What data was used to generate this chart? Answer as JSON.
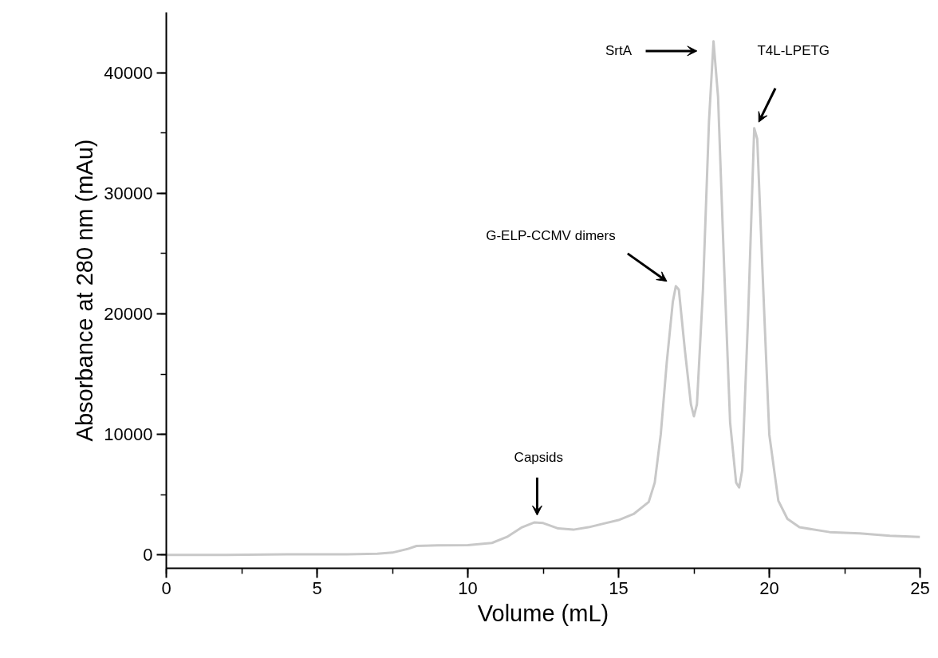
{
  "chart_data": {
    "type": "line",
    "xlabel": "Volume (mL)",
    "ylabel": "Absorbance at 280 nm (mAu)",
    "xlim": [
      0,
      25
    ],
    "ylim": [
      -1100,
      45000
    ],
    "xticks": [
      0,
      5,
      10,
      15,
      20,
      25
    ],
    "yticks": [
      0,
      10000,
      20000,
      30000,
      40000
    ],
    "grid": false,
    "marker": "none",
    "line_style": "solid",
    "series": [
      {
        "color": "#c8c8c8",
        "x": [
          0,
          2,
          4,
          6,
          7,
          7.5,
          8.0,
          8.3,
          9,
          10,
          10.8,
          11.3,
          11.8,
          12.2,
          12.5,
          13,
          13.5,
          14,
          15,
          15.5,
          16,
          16.2,
          16.4,
          16.6,
          16.8,
          16.9,
          17.0,
          17.2,
          17.4,
          17.5,
          17.6,
          17.8,
          18.0,
          18.15,
          18.3,
          18.5,
          18.7,
          18.9,
          19.0,
          19.1,
          19.3,
          19.5,
          19.6,
          19.8,
          20.0,
          20.3,
          20.6,
          21,
          22,
          23,
          24,
          25
        ],
        "values": [
          0,
          0,
          50,
          50,
          100,
          200,
          500,
          750,
          800,
          820,
          1000,
          1500,
          2300,
          2700,
          2650,
          2200,
          2100,
          2300,
          2900,
          3400,
          4400,
          6000,
          10000,
          16000,
          21000,
          22300,
          22000,
          17000,
          12500,
          11500,
          12500,
          22000,
          36000,
          42600,
          38000,
          24000,
          11000,
          6000,
          5600,
          7000,
          20000,
          35400,
          34500,
          22000,
          10000,
          4500,
          3000,
          2300,
          1900,
          1800,
          1600,
          1500
        ]
      }
    ],
    "annotations": [
      "Capsids",
      "G-ELP-CCMV dimers",
      "SrtA",
      "T4L-LPETG"
    ]
  }
}
